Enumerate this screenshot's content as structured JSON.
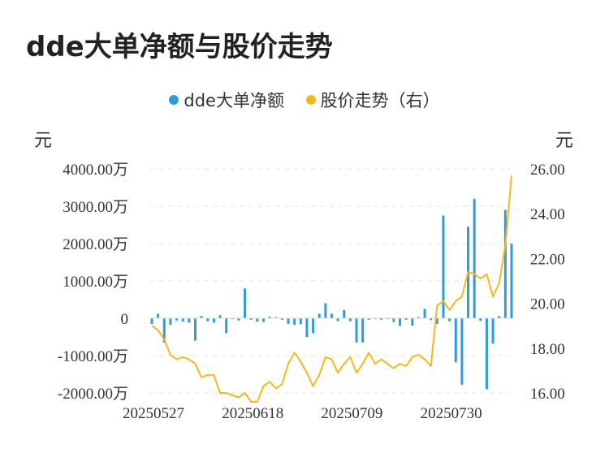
{
  "title": "dde大单净额与股价走势",
  "legend": [
    {
      "label": "dde大单净额",
      "color": "#2f9ae0"
    },
    {
      "label": "股价走势（右）",
      "color": "#f5b81c"
    }
  ],
  "unit_left": "元",
  "unit_right": "元",
  "chart_data": {
    "type": "bar+line",
    "title": "dde大单净额与股价走势",
    "y_left": {
      "ticks": [
        4000,
        3000,
        2000,
        1000,
        0,
        -1000,
        -2000
      ],
      "tick_labels": [
        "4000.00万",
        "3000.00万",
        "2000.00万",
        "1000.00万",
        "0",
        "-1000.00万",
        "-2000.00万"
      ],
      "range": [
        -2000,
        4000
      ]
    },
    "y_right": {
      "ticks": [
        26,
        24,
        22,
        20,
        18,
        16
      ],
      "tick_labels": [
        "26.00",
        "24.00",
        "22.00",
        "20.00",
        "18.00",
        "16.00"
      ],
      "range": [
        16,
        26
      ]
    },
    "x_tick_labels": [
      {
        "label": "20250527",
        "index": 0
      },
      {
        "label": "20250618",
        "index": 16
      },
      {
        "label": "20250709",
        "index": 32
      },
      {
        "label": "20250730",
        "index": 48
      }
    ],
    "grid": true,
    "legend_position": "top-center",
    "series": [
      {
        "name": "dde大单净额",
        "kind": "bar",
        "color": "#2f9ae0",
        "values": [
          -150,
          120,
          -650,
          -180,
          -60,
          -90,
          -120,
          -600,
          60,
          -80,
          -120,
          80,
          -400,
          0,
          -60,
          800,
          -40,
          -90,
          -100,
          40,
          30,
          -40,
          -150,
          -180,
          -160,
          -500,
          -400,
          120,
          400,
          120,
          -80,
          220,
          -80,
          -650,
          -650,
          -40,
          0,
          -40,
          0,
          -100,
          -200,
          -40,
          -200,
          30,
          250,
          -50,
          -150,
          2750,
          -80,
          -1180,
          -1780,
          2450,
          3200,
          -70,
          -1900,
          -680,
          60,
          2900,
          2000
        ]
      },
      {
        "name": "股价走势（右）",
        "kind": "line",
        "axis": "right",
        "color": "#f5b81c",
        "values": [
          19.0,
          18.8,
          18.4,
          17.7,
          17.5,
          17.6,
          17.5,
          17.3,
          16.7,
          16.8,
          16.8,
          16.0,
          16.0,
          15.9,
          15.8,
          16.0,
          15.6,
          15.6,
          16.3,
          16.5,
          16.2,
          16.4,
          17.3,
          17.8,
          17.4,
          16.9,
          16.3,
          16.8,
          17.6,
          17.5,
          16.9,
          17.3,
          17.6,
          16.9,
          17.3,
          17.8,
          17.3,
          17.5,
          17.3,
          17.1,
          17.3,
          17.2,
          17.6,
          17.7,
          17.5,
          17.2,
          19.9,
          20.1,
          19.7,
          20.1,
          20.3,
          21.4,
          21.3,
          21.1,
          21.3,
          20.3,
          20.9,
          22.6,
          25.7
        ]
      }
    ]
  }
}
